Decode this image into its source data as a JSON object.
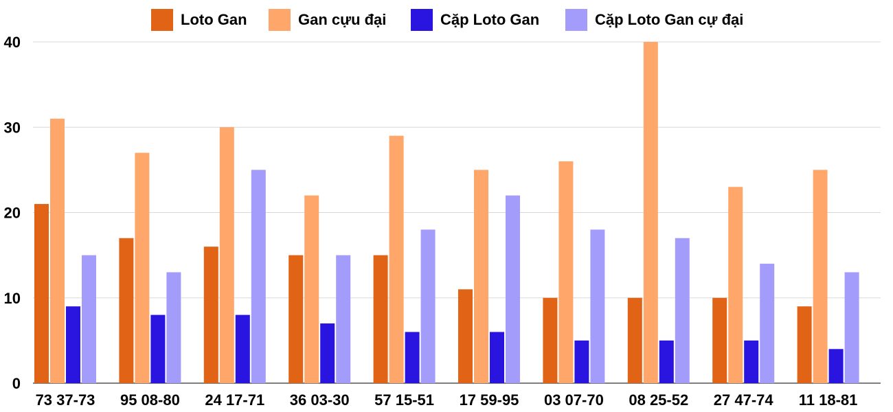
{
  "chart_data": {
    "type": "bar",
    "title": "",
    "xlabel": "",
    "ylabel": "",
    "ylim": [
      0,
      40
    ],
    "yticks": [
      0,
      10,
      20,
      30,
      40
    ],
    "grid": true,
    "legend_position": "top",
    "categories": [
      "73 37-73",
      "95 08-80",
      "24 17-71",
      "36 03-30",
      "57 15-51",
      "17 59-95",
      "03 07-70",
      "08 25-52",
      "27 47-74",
      "11 18-81"
    ],
    "series": [
      {
        "name": "Loto Gan",
        "color": "#e06316",
        "values": [
          21,
          17,
          16,
          15,
          15,
          11,
          10,
          10,
          10,
          9
        ]
      },
      {
        "name": "Gan cựu đại",
        "color": "#ffa66b",
        "values": [
          31,
          27,
          30,
          22,
          29,
          25,
          26,
          40,
          23,
          25
        ]
      },
      {
        "name": "Cặp Loto Gan",
        "color": "#2a14e0",
        "values": [
          9,
          8,
          8,
          7,
          6,
          6,
          5,
          5,
          5,
          4
        ]
      },
      {
        "name": "Cặp Loto Gan cự đại",
        "color": "#a49cfb",
        "values": [
          15,
          13,
          25,
          15,
          18,
          22,
          18,
          17,
          14,
          13
        ]
      }
    ]
  }
}
